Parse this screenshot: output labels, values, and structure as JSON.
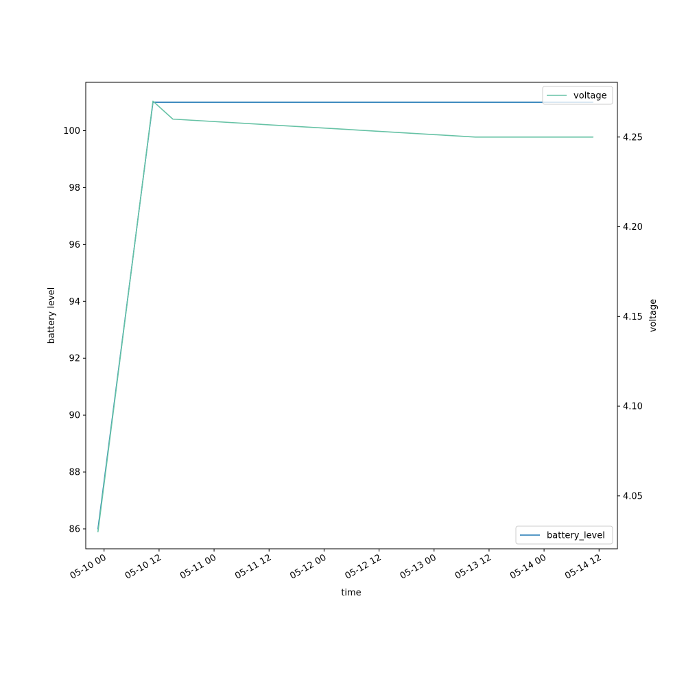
{
  "chart_data": {
    "type": "line",
    "title": "",
    "xlabel": "time",
    "ylabel_left": "battery level",
    "ylabel_right": "voltage",
    "xlim": [
      "2023-05-09 20:00",
      "2023-05-14 16:00"
    ],
    "ylim_left": [
      85.3,
      101.7
    ],
    "ylim_right": [
      4.0205,
      4.2805
    ],
    "x_ticks": [
      "2023-05-10 00:00",
      "2023-05-10 12:00",
      "2023-05-11 00:00",
      "2023-05-11 12:00",
      "2023-05-12 00:00",
      "2023-05-12 12:00",
      "2023-05-13 00:00",
      "2023-05-13 12:00",
      "2023-05-14 00:00",
      "2023-05-14 12:00"
    ],
    "x_tick_labels": [
      "05-10 00",
      "05-10 12",
      "05-11 00",
      "05-11 12",
      "05-12 00",
      "05-12 12",
      "05-13 00",
      "05-13 12",
      "05-14 00",
      "05-14 12"
    ],
    "y_ticks_left": [
      86,
      88,
      90,
      92,
      94,
      96,
      98,
      100
    ],
    "y_tick_labels_left": [
      "86",
      "88",
      "90",
      "92",
      "94",
      "96",
      "98",
      "100"
    ],
    "y_ticks_right": [
      4.05,
      4.1,
      4.15,
      4.2,
      4.25
    ],
    "y_tick_labels_right": [
      "4.05",
      "4.10",
      "4.15",
      "4.20",
      "4.25"
    ],
    "grid": false,
    "series": [
      {
        "name": "battery_level",
        "axis": "left",
        "color": "#1f77b4",
        "legend_position": "lower-right",
        "x": [
          "2023-05-09 22:40",
          "2023-05-10 10:40",
          "2023-05-14 10:40"
        ],
        "y": [
          86,
          101,
          101
        ]
      },
      {
        "name": "voltage",
        "axis": "right",
        "color": "#66c2a5",
        "legend_position": "upper-right",
        "x": [
          "2023-05-09 22:40",
          "2023-05-10 10:40",
          "2023-05-10 15:00",
          "2023-05-12 00:00",
          "2023-05-13 09:00",
          "2023-05-14 10:40"
        ],
        "y": [
          4.03,
          4.27,
          4.26,
          4.255,
          4.25,
          4.25
        ]
      }
    ]
  }
}
